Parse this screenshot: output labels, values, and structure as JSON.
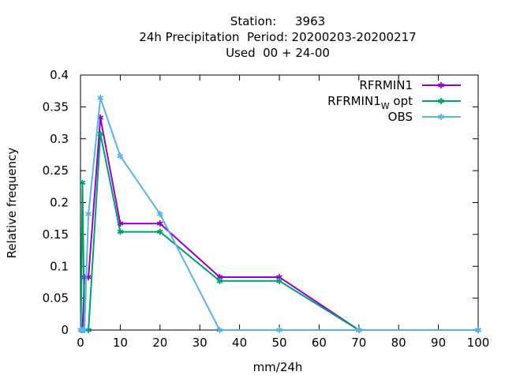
{
  "chart_data": {
    "type": "line",
    "title_lines": [
      "Station:     3963",
      "24h Precipitation  Period: 20200203-20200217",
      "Used  00 + 24-00"
    ],
    "xlabel": "mm/24h",
    "ylabel": "Relative frequency",
    "xlim": [
      0,
      100
    ],
    "ylim": [
      0,
      0.4
    ],
    "xticks": [
      0,
      10,
      20,
      30,
      40,
      50,
      60,
      70,
      80,
      90,
      100
    ],
    "yticks": [
      0,
      0.05,
      0.1,
      0.15,
      0.2,
      0.25,
      0.3,
      0.35,
      0.4
    ],
    "xtick_labels": [
      "0",
      "10",
      "20",
      "30",
      "40",
      "50",
      "60",
      "70",
      "80",
      "90",
      "100"
    ],
    "ytick_labels": [
      "0",
      "0.05",
      "0.1",
      "0.15",
      "0.2",
      "0.25",
      "0.3",
      "0.35",
      "0.4"
    ],
    "grid": false,
    "legend_position": "top-right",
    "series": [
      {
        "name": "RFRMIN1",
        "color": "#9400d3",
        "x": [
          0.1,
          0.5,
          1,
          2,
          5,
          10,
          20,
          35,
          50,
          70,
          100
        ],
        "y": [
          0.0,
          0.0,
          0.083,
          0.083,
          0.333,
          0.167,
          0.167,
          0.083,
          0.083,
          0.0,
          0.0
        ]
      },
      {
        "name": "RFRMIN1",
        "name_subscript": "W",
        "name_suffix": " opt",
        "color": "#009e73",
        "x": [
          0.1,
          0.5,
          1,
          2,
          5,
          10,
          20,
          35,
          50,
          70,
          100
        ],
        "y": [
          0.0,
          0.231,
          0.0,
          0.0,
          0.308,
          0.154,
          0.154,
          0.077,
          0.077,
          0.0,
          0.0
        ]
      },
      {
        "name": "OBS",
        "color": "#56b4e9",
        "x": [
          0.1,
          0.5,
          1,
          2,
          5,
          10,
          20,
          35,
          50,
          70,
          100
        ],
        "y": [
          0.0,
          0.0,
          0.0,
          0.182,
          0.364,
          0.273,
          0.182,
          0.0,
          0.0,
          0.0,
          0.0
        ]
      }
    ]
  }
}
